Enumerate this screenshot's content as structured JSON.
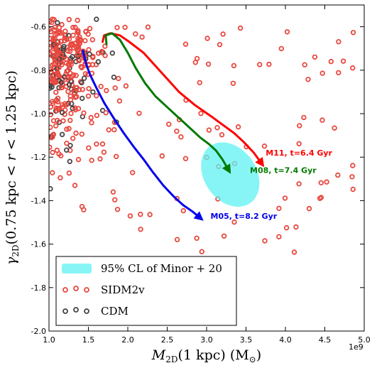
{
  "chart_data": {
    "type": "scatter",
    "xlabel": "M_2D(1 kpc) (M_⊙)",
    "ylabel": "γ_2D(0.75 kpc < r < 1.25 kpc)",
    "x_offset_label": "1e9",
    "xlim": [
      1.0,
      5.0
    ],
    "ylim": [
      -2.0,
      -0.5
    ],
    "x_ticks": [
      "1.0",
      "1.5",
      "2.0",
      "2.5",
      "3.0",
      "3.5",
      "4.0",
      "4.5",
      "5.0"
    ],
    "y_ticks": [
      "-0.6",
      "-0.8",
      "-1.0",
      "-1.2",
      "-1.4",
      "-1.6",
      "-1.8",
      "-2.0"
    ],
    "colors": {
      "sidm": "#e8483f",
      "cdm": "#444444",
      "ellipse": "#5ff2f2",
      "m11": "#ff0000",
      "m08": "#007a00",
      "m05": "#0000ee"
    },
    "legend": {
      "position": "lower-left",
      "entries": [
        "95% CL of Minor + 20",
        "SIDM2v",
        "CDM"
      ]
    },
    "ellipse": {
      "center": [
        3.3,
        -1.28
      ],
      "half_width": 0.33,
      "half_height": 0.16,
      "angle_deg": -35
    },
    "tracks": [
      {
        "label": "M11, t=6.4 Gyr",
        "color": "#ff0000",
        "points": [
          [
            1.68,
            -0.67
          ],
          [
            1.7,
            -0.64
          ],
          [
            1.78,
            -0.63
          ],
          [
            1.9,
            -0.64
          ],
          [
            2.02,
            -0.67
          ],
          [
            2.2,
            -0.72
          ],
          [
            2.35,
            -0.78
          ],
          [
            2.5,
            -0.84
          ],
          [
            2.65,
            -0.9
          ],
          [
            2.85,
            -0.96
          ],
          [
            3.05,
            -1.01
          ],
          [
            3.2,
            -1.05
          ],
          [
            3.35,
            -1.09
          ],
          [
            3.47,
            -1.13
          ],
          [
            3.6,
            -1.18
          ],
          [
            3.7,
            -1.23
          ]
        ]
      },
      {
        "label": "M08, t=7.4 Gyr",
        "color": "#007a00",
        "points": [
          [
            1.73,
            -0.68
          ],
          [
            1.72,
            -0.64
          ],
          [
            1.8,
            -0.63
          ],
          [
            1.9,
            -0.66
          ],
          [
            2.0,
            -0.72
          ],
          [
            2.1,
            -0.79
          ],
          [
            2.22,
            -0.86
          ],
          [
            2.35,
            -0.92
          ],
          [
            2.5,
            -0.97
          ],
          [
            2.65,
            -1.02
          ],
          [
            2.8,
            -1.07
          ],
          [
            2.92,
            -1.11
          ],
          [
            3.03,
            -1.14
          ],
          [
            3.12,
            -1.17
          ],
          [
            3.2,
            -1.21
          ],
          [
            3.28,
            -1.26
          ]
        ]
      },
      {
        "label": "M05, t=8.2 Gyr",
        "color": "#0000ee",
        "points": [
          [
            1.43,
            -0.71
          ],
          [
            1.47,
            -0.77
          ],
          [
            1.52,
            -0.82
          ],
          [
            1.6,
            -0.88
          ],
          [
            1.7,
            -0.95
          ],
          [
            1.82,
            -1.02
          ],
          [
            1.95,
            -1.09
          ],
          [
            2.07,
            -1.15
          ],
          [
            2.2,
            -1.21
          ],
          [
            2.32,
            -1.27
          ],
          [
            2.45,
            -1.33
          ],
          [
            2.58,
            -1.38
          ],
          [
            2.7,
            -1.42
          ],
          [
            2.82,
            -1.45
          ],
          [
            2.92,
            -1.48
          ]
        ]
      }
    ],
    "annotations": [
      {
        "text": "M11, t=6.4 Gyr",
        "x": 3.75,
        "y": -1.18,
        "color": "#ff0000"
      },
      {
        "text": "M08, t=7.4 Gyr",
        "x": 3.55,
        "y": -1.26,
        "color": "#007a00"
      },
      {
        "text": "M05, t=8.2 Gyr",
        "x": 3.05,
        "y": -1.47,
        "color": "#0000ee"
      }
    ],
    "series": [
      {
        "name": "SIDM2v",
        "color": "#e8483f",
        "points": [
          [
            1.5,
            -0.6
          ],
          [
            3.2,
            -0.69
          ]
        ]
      },
      {
        "name": "CDM",
        "color": "#444444",
        "points": [
          [
            1.2,
            -0.62
          ],
          [
            1.37,
            -0.68
          ]
        ]
      }
    ]
  }
}
